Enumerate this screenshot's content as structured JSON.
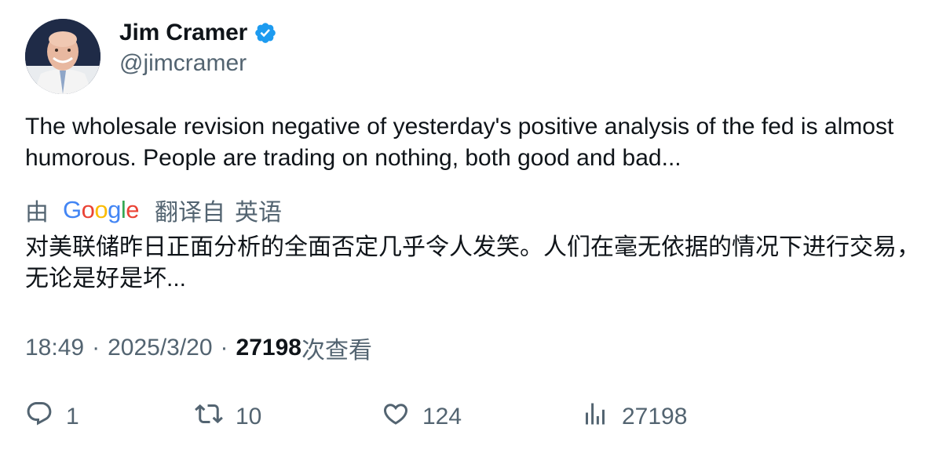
{
  "author": {
    "name": "Jim Cramer",
    "handle": "@jimcramer",
    "verified_icon": "verified-badge-icon",
    "badge_color": "#1d9bf0"
  },
  "tweet": {
    "text": "The wholesale revision negative of yesterday's positive analysis of the fed is almost humorous. People are trading on nothing, both good and bad..."
  },
  "translation": {
    "by": "由",
    "provider": "Google",
    "translated_from": "翻译自",
    "language": "英语",
    "text": "对美联储昨日正面分析的全面否定几乎令人发笑。人们在毫无依据的情况下进行交易，无论是好是坏..."
  },
  "meta": {
    "time": "18:49",
    "separator": "·",
    "date": "2025/3/20",
    "views_count": "27198",
    "views_label": "次查看"
  },
  "actions": {
    "reply_count": "1",
    "retweet_count": "10",
    "like_count": "124",
    "views_count": "27198"
  },
  "colors": {
    "text_primary": "#0f1419",
    "text_secondary": "#536471"
  }
}
